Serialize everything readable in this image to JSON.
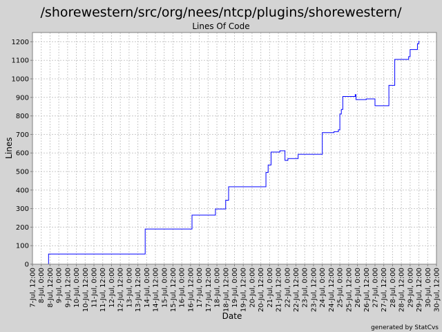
{
  "chart_data": {
    "type": "line",
    "title": "/shorewestern/src/org/nees/ntcp/plugins/shorewestern/",
    "subtitle": "Lines Of Code",
    "xlabel": "Date",
    "ylabel": "Lines",
    "footer": "generated by StatCvs",
    "ylim": [
      0,
      1250
    ],
    "y_ticks": [
      0,
      100,
      200,
      300,
      400,
      500,
      600,
      700,
      800,
      900,
      1000,
      1100,
      1200
    ],
    "x_tick_labels": [
      "7-Jul, 12:00",
      "8-Jul, 0:00",
      "8-Jul, 12:00",
      "9-Jul, 0:00",
      "9-Jul, 12:00",
      "10-Jul, 0:00",
      "10-Jul, 12:00",
      "11-Jul, 0:00",
      "11-Jul, 12:00",
      "12-Jul, 0:00",
      "12-Jul, 12:00",
      "13-Jul, 0:00",
      "13-Jul, 12:00",
      "14-Jul, 0:00",
      "14-Jul, 12:00",
      "15-Jul, 0:00",
      "15-Jul, 12:00",
      "16-Jul, 0:00",
      "16-Jul, 12:00",
      "17-Jul, 0:00",
      "17-Jul, 12:00",
      "18-Jul, 0:00",
      "18-Jul, 12:00",
      "19-Jul, 0:00",
      "19-Jul, 12:00",
      "20-Jul, 0:00",
      "20-Jul, 12:00",
      "21-Jul, 0:00",
      "21-Jul, 12:00",
      "22-Jul, 0:00",
      "22-Jul, 12:00",
      "23-Jul, 0:00",
      "23-Jul, 12:00",
      "24-Jul, 0:00",
      "24-Jul, 12:00",
      "25-Jul, 0:00",
      "25-Jul, 12:00",
      "26-Jul, 0:00",
      "26-Jul, 12:00",
      "27-Jul, 0:00",
      "27-Jul, 12:00",
      "28-Jul, 0:00",
      "28-Jul, 12:00",
      "29-Jul, 0:00",
      "29-Jul, 12:00",
      "30-Jul, 0:00",
      "30-Jul, 12:00"
    ],
    "x_tick_values": [
      "2004-07-07T12:00",
      "2004-07-08T00:00",
      "2004-07-08T12:00",
      "2004-07-09T00:00",
      "2004-07-09T12:00",
      "2004-07-10T00:00",
      "2004-07-10T12:00",
      "2004-07-11T00:00",
      "2004-07-11T12:00",
      "2004-07-12T00:00",
      "2004-07-12T12:00",
      "2004-07-13T00:00",
      "2004-07-13T12:00",
      "2004-07-14T00:00",
      "2004-07-14T12:00",
      "2004-07-15T00:00",
      "2004-07-15T12:00",
      "2004-07-16T00:00",
      "2004-07-16T12:00",
      "2004-07-17T00:00",
      "2004-07-17T12:00",
      "2004-07-18T00:00",
      "2004-07-18T12:00",
      "2004-07-19T00:00",
      "2004-07-19T12:00",
      "2004-07-20T00:00",
      "2004-07-20T12:00",
      "2004-07-21T00:00",
      "2004-07-21T12:00",
      "2004-07-22T00:00",
      "2004-07-22T12:00",
      "2004-07-23T00:00",
      "2004-07-23T12:00",
      "2004-07-24T00:00",
      "2004-07-24T12:00",
      "2004-07-25T00:00",
      "2004-07-25T12:00",
      "2004-07-26T00:00",
      "2004-07-26T12:00",
      "2004-07-27T00:00",
      "2004-07-27T12:00",
      "2004-07-28T00:00",
      "2004-07-28T12:00",
      "2004-07-29T00:00",
      "2004-07-29T12:00",
      "2004-07-30T00:00",
      "2004-07-30T12:00"
    ],
    "grid": true,
    "line_color": "#0000ff",
    "plot_background": "#ffffff",
    "page_background": "#d4d4d4",
    "grid_color": "#c8c8c8",
    "series": [
      {
        "points": [
          {
            "x": "2004-07-08T10:00",
            "y": 0
          },
          {
            "x": "2004-07-08T10:00",
            "y": 55
          },
          {
            "x": "2004-07-13T22:00",
            "y": 55
          },
          {
            "x": "2004-07-13T22:00",
            "y": 190
          },
          {
            "x": "2004-07-16T14:00",
            "y": 190
          },
          {
            "x": "2004-07-16T14:00",
            "y": 265
          },
          {
            "x": "2004-07-17T22:00",
            "y": 265
          },
          {
            "x": "2004-07-17T22:00",
            "y": 298
          },
          {
            "x": "2004-07-18T12:00",
            "y": 298
          },
          {
            "x": "2004-07-18T12:00",
            "y": 345
          },
          {
            "x": "2004-07-18T16:00",
            "y": 345
          },
          {
            "x": "2004-07-18T16:00",
            "y": 418
          },
          {
            "x": "2004-07-20T19:00",
            "y": 418
          },
          {
            "x": "2004-07-20T19:00",
            "y": 495
          },
          {
            "x": "2004-07-20T22:00",
            "y": 495
          },
          {
            "x": "2004-07-20T22:00",
            "y": 535
          },
          {
            "x": "2004-07-21T02:00",
            "y": 535
          },
          {
            "x": "2004-07-21T02:00",
            "y": 605
          },
          {
            "x": "2004-07-21T14:00",
            "y": 605
          },
          {
            "x": "2004-07-21T14:00",
            "y": 612
          },
          {
            "x": "2004-07-21T21:00",
            "y": 612
          },
          {
            "x": "2004-07-21T21:00",
            "y": 560
          },
          {
            "x": "2004-07-22T01:00",
            "y": 560
          },
          {
            "x": "2004-07-22T01:00",
            "y": 570
          },
          {
            "x": "2004-07-22T15:00",
            "y": 570
          },
          {
            "x": "2004-07-22T15:00",
            "y": 593
          },
          {
            "x": "2004-07-24T00:00",
            "y": 593
          },
          {
            "x": "2004-07-24T00:00",
            "y": 710
          },
          {
            "x": "2004-07-24T16:00",
            "y": 710
          },
          {
            "x": "2004-07-24T16:00",
            "y": 715
          },
          {
            "x": "2004-07-24T22:00",
            "y": 715
          },
          {
            "x": "2004-07-24T22:00",
            "y": 725
          },
          {
            "x": "2004-07-25T00:00",
            "y": 725
          },
          {
            "x": "2004-07-25T00:00",
            "y": 810
          },
          {
            "x": "2004-07-25T02:00",
            "y": 810
          },
          {
            "x": "2004-07-25T02:00",
            "y": 835
          },
          {
            "x": "2004-07-25T04:00",
            "y": 835
          },
          {
            "x": "2004-07-25T04:00",
            "y": 905
          },
          {
            "x": "2004-07-25T21:00",
            "y": 905
          },
          {
            "x": "2004-07-25T21:00",
            "y": 915
          },
          {
            "x": "2004-07-25T22:00",
            "y": 915
          },
          {
            "x": "2004-07-25T22:00",
            "y": 888
          },
          {
            "x": "2004-07-26T12:00",
            "y": 888
          },
          {
            "x": "2004-07-26T12:00",
            "y": 892
          },
          {
            "x": "2004-07-27T00:00",
            "y": 892
          },
          {
            "x": "2004-07-27T00:00",
            "y": 855
          },
          {
            "x": "2004-07-27T19:00",
            "y": 855
          },
          {
            "x": "2004-07-27T19:00",
            "y": 965
          },
          {
            "x": "2004-07-28T03:00",
            "y": 965
          },
          {
            "x": "2004-07-28T03:00",
            "y": 1105
          },
          {
            "x": "2004-07-28T22:00",
            "y": 1105
          },
          {
            "x": "2004-07-28T22:00",
            "y": 1120
          },
          {
            "x": "2004-07-29T00:00",
            "y": 1120
          },
          {
            "x": "2004-07-29T00:00",
            "y": 1158
          },
          {
            "x": "2004-07-29T10:00",
            "y": 1158
          },
          {
            "x": "2004-07-29T10:00",
            "y": 1190
          },
          {
            "x": "2004-07-29T12:00",
            "y": 1190
          },
          {
            "x": "2004-07-29T12:00",
            "y": 1205
          }
        ]
      }
    ]
  }
}
